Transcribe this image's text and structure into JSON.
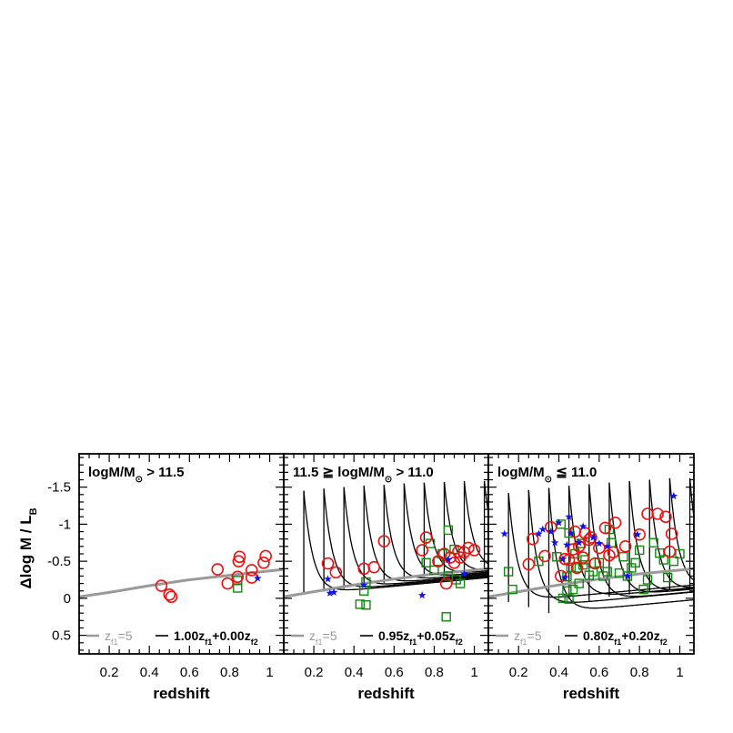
{
  "chart_data": {
    "type": "scatter",
    "shared": {
      "xlabel": "redshift",
      "ylabel": "Δlog M / L",
      "ylabel_subscript": "B",
      "y_axis": "inverted",
      "ylim": [
        0.75,
        -1.95
      ],
      "yticks": [
        0.5,
        0,
        -0.5,
        -1,
        -1.5
      ],
      "ytick_labels": [
        "0.5",
        "0",
        "-0.5",
        "-1",
        "-1.5"
      ],
      "legend_left": {
        "text": "z",
        "sub": "f1",
        "suffix": "=5",
        "color": "#999999"
      },
      "colors": {
        "ssp_line": "#999999",
        "model_line": "#000000",
        "circle": "#ee1111",
        "square": "#118811",
        "star": "#1111ee"
      }
    },
    "panels": [
      {
        "title": "logM/M",
        "title_sub": "⊙",
        "title_rest": " > 11.5",
        "xlim": [
          0.05,
          1.07
        ],
        "xticks": [
          0.2,
          0.4,
          0.6,
          0.8,
          1
        ],
        "xtick_labels": [
          "0.2",
          "0.4",
          "0.6",
          "0.8",
          "1"
        ],
        "legend_right": {
          "p1": "1.00z",
          "s1": "f1",
          "p2": "+0.00z",
          "s2": "f2"
        },
        "ssp_curve": {
          "x": [
            0.05,
            0.2,
            0.4,
            0.6,
            0.8,
            1.0,
            1.07
          ],
          "y": [
            -0.02,
            -0.08,
            -0.17,
            -0.25,
            -0.31,
            -0.37,
            -0.39
          ]
        },
        "model_curves": [],
        "circles": [
          [
            0.46,
            -0.17
          ],
          [
            0.5,
            -0.05
          ],
          [
            0.51,
            -0.02
          ],
          [
            0.74,
            -0.39
          ],
          [
            0.79,
            -0.2
          ],
          [
            0.84,
            -0.29
          ],
          [
            0.845,
            -0.5
          ],
          [
            0.85,
            -0.56
          ],
          [
            0.91,
            -0.28
          ],
          [
            0.91,
            -0.38
          ],
          [
            0.97,
            -0.48
          ],
          [
            0.98,
            -0.57
          ]
        ],
        "squares": [
          [
            0.84,
            -0.14
          ],
          [
            0.84,
            -0.24
          ]
        ],
        "stars": [
          [
            0.94,
            -0.27
          ]
        ]
      },
      {
        "title": "11.5 ≧ logM/M",
        "title_sub": "⊙",
        "title_rest": " > 11.0",
        "xlim": [
          0.05,
          1.07
        ],
        "xticks": [
          0.2,
          0.4,
          0.6,
          0.8,
          1
        ],
        "xtick_labels": [
          "0.2",
          "0.4",
          "0.6",
          "0.8",
          "1"
        ],
        "legend_right": {
          "p1": "0.95z",
          "s1": "f1",
          "p2": "+0.05z",
          "s2": "f2"
        },
        "ssp_curve": {
          "x": [
            0.05,
            0.2,
            0.4,
            0.6,
            0.8,
            1.0,
            1.07
          ],
          "y": [
            -0.02,
            -0.09,
            -0.18,
            -0.26,
            -0.33,
            -0.38,
            -0.4
          ]
        },
        "model_curves": [
          {
            "z0": 0.15,
            "ytop": -1.45,
            "ybase": -0.05
          },
          {
            "z0": 0.25,
            "ytop": -1.48,
            "ybase": -0.09
          },
          {
            "z0": 0.35,
            "ytop": -1.5,
            "ybase": -0.13
          },
          {
            "z0": 0.45,
            "ytop": -1.52,
            "ybase": -0.17
          },
          {
            "z0": 0.55,
            "ytop": -1.53,
            "ybase": -0.21
          },
          {
            "z0": 0.65,
            "ytop": -1.55,
            "ybase": -0.25
          },
          {
            "z0": 0.75,
            "ytop": -1.56,
            "ybase": -0.29
          },
          {
            "z0": 0.85,
            "ytop": -1.57,
            "ybase": -0.32
          },
          {
            "z0": 0.95,
            "ytop": -1.58,
            "ybase": -0.35
          },
          {
            "z0": 1.05,
            "ytop": -1.58,
            "ybase": -0.38
          }
        ],
        "circles": [
          [
            0.27,
            -0.47
          ],
          [
            0.31,
            -0.35
          ],
          [
            0.45,
            -0.4
          ],
          [
            0.5,
            -0.42
          ],
          [
            0.55,
            -0.77
          ],
          [
            0.74,
            -0.65
          ],
          [
            0.76,
            -0.82
          ],
          [
            0.82,
            -0.5
          ],
          [
            0.85,
            -0.6
          ],
          [
            0.86,
            -0.2
          ],
          [
            0.88,
            -0.55
          ],
          [
            0.9,
            -0.48
          ],
          [
            0.92,
            -0.63
          ],
          [
            0.93,
            -0.55
          ],
          [
            0.95,
            -0.62
          ],
          [
            0.97,
            -0.68
          ],
          [
            1.0,
            -0.65
          ]
        ],
        "squares": [
          [
            0.43,
            0.08
          ],
          [
            0.45,
            -0.1
          ],
          [
            0.46,
            -0.22
          ],
          [
            0.46,
            0.09
          ],
          [
            0.76,
            -0.48
          ],
          [
            0.78,
            -0.74
          ],
          [
            0.8,
            -0.38
          ],
          [
            0.82,
            -0.5
          ],
          [
            0.84,
            -0.6
          ],
          [
            0.86,
            0.25
          ],
          [
            0.87,
            -0.92
          ],
          [
            0.87,
            -0.3
          ],
          [
            0.9,
            -0.66
          ],
          [
            0.91,
            -0.25
          ],
          [
            0.93,
            -0.2
          ]
        ],
        "stars": [
          [
            0.27,
            -0.26
          ],
          [
            0.28,
            -0.07
          ],
          [
            0.3,
            -0.08
          ],
          [
            0.45,
            -0.18
          ],
          [
            0.74,
            -0.04
          ],
          [
            0.87,
            -0.52
          ],
          [
            0.95,
            -0.33
          ]
        ]
      },
      {
        "title": "logM/M",
        "title_sub": "⊙",
        "title_rest": " ≦ 11.0",
        "xlim": [
          0.05,
          1.07
        ],
        "xticks": [
          0.2,
          0.4,
          0.6,
          0.8,
          1
        ],
        "xtick_labels": [
          "0.2",
          "0.4",
          "0.6",
          "0.8",
          "1"
        ],
        "legend_right": {
          "p1": "0.80z",
          "s1": "f1",
          "p2": "+0.20z",
          "s2": "f2"
        },
        "ssp_curve": {
          "x": [
            0.05,
            0.2,
            0.4,
            0.6,
            0.8,
            1.0,
            1.07
          ],
          "y": [
            -0.02,
            -0.09,
            -0.18,
            -0.26,
            -0.33,
            -0.38,
            -0.4
          ]
        },
        "model_curves": [
          {
            "z0": 0.15,
            "ytop": -1.42,
            "ybase": 0.05
          },
          {
            "z0": 0.25,
            "ytop": -1.46,
            "ybase": 0.12
          },
          {
            "z0": 0.35,
            "ytop": -1.49,
            "ybase": 0.2
          },
          {
            "z0": 0.45,
            "ytop": -1.52,
            "ybase": 0.01
          },
          {
            "z0": 0.55,
            "ytop": -1.54,
            "ybase": 0.04
          },
          {
            "z0": 0.65,
            "ytop": -1.56,
            "ybase": -0.02
          },
          {
            "z0": 0.75,
            "ytop": -1.58,
            "ybase": -0.05
          },
          {
            "z0": 0.85,
            "ytop": -1.6,
            "ybase": -0.08
          },
          {
            "z0": 0.95,
            "ytop": -1.62,
            "ybase": -0.11
          },
          {
            "z0": 1.05,
            "ytop": -1.62,
            "ybase": -0.14
          }
        ],
        "circles": [
          [
            0.25,
            -0.46
          ],
          [
            0.27,
            -0.8
          ],
          [
            0.33,
            -0.57
          ],
          [
            0.36,
            -0.96
          ],
          [
            0.41,
            -0.3
          ],
          [
            0.43,
            -0.53
          ],
          [
            0.45,
            -0.52
          ],
          [
            0.47,
            -0.66
          ],
          [
            0.48,
            -0.9
          ],
          [
            0.49,
            -0.41
          ],
          [
            0.5,
            -0.7
          ],
          [
            0.52,
            -0.55
          ],
          [
            0.53,
            -0.88
          ],
          [
            0.55,
            -0.79
          ],
          [
            0.56,
            -0.82
          ],
          [
            0.58,
            -0.47
          ],
          [
            0.6,
            -0.68
          ],
          [
            0.63,
            -0.95
          ],
          [
            0.65,
            -0.58
          ],
          [
            0.67,
            -0.62
          ],
          [
            0.68,
            -1.02
          ],
          [
            0.73,
            -0.7
          ],
          [
            0.8,
            -0.86
          ],
          [
            0.84,
            -1.14
          ],
          [
            0.89,
            -1.14
          ],
          [
            0.93,
            -1.1
          ],
          [
            0.95,
            -0.63
          ],
          [
            0.96,
            -0.87
          ]
        ],
        "squares": [
          [
            0.15,
            -0.36
          ],
          [
            0.17,
            -0.12
          ],
          [
            0.3,
            -0.5
          ],
          [
            0.39,
            -0.56
          ],
          [
            0.41,
            -1.0
          ],
          [
            0.42,
            0.0
          ],
          [
            0.44,
            -0.1
          ],
          [
            0.44,
            -0.29
          ],
          [
            0.45,
            -0.88
          ],
          [
            0.45,
            0.01
          ],
          [
            0.46,
            -0.42
          ],
          [
            0.47,
            -0.12
          ],
          [
            0.48,
            -0.6
          ],
          [
            0.49,
            -0.41
          ],
          [
            0.5,
            -0.2
          ],
          [
            0.51,
            -0.74
          ],
          [
            0.52,
            -0.45
          ],
          [
            0.53,
            -0.52
          ],
          [
            0.55,
            -0.31
          ],
          [
            0.57,
            -0.36
          ],
          [
            0.6,
            -0.48
          ],
          [
            0.62,
            -0.3
          ],
          [
            0.64,
            -0.36
          ],
          [
            0.65,
            -0.93
          ],
          [
            0.66,
            -0.75
          ],
          [
            0.7,
            -0.34
          ],
          [
            0.72,
            -0.56
          ],
          [
            0.74,
            -0.3
          ],
          [
            0.76,
            -0.41
          ],
          [
            0.78,
            -0.48
          ],
          [
            0.8,
            -0.65
          ],
          [
            0.82,
            -0.12
          ],
          [
            0.84,
            -0.25
          ],
          [
            0.87,
            -0.75
          ],
          [
            0.9,
            -0.61
          ],
          [
            0.92,
            -0.52
          ],
          [
            0.94,
            -0.28
          ],
          [
            0.97,
            -0.5
          ],
          [
            1.0,
            -0.6
          ]
        ],
        "stars": [
          [
            0.13,
            -0.87
          ],
          [
            0.3,
            -0.87
          ],
          [
            0.32,
            -0.93
          ],
          [
            0.36,
            -0.9
          ],
          [
            0.38,
            -0.75
          ],
          [
            0.4,
            -1.02
          ],
          [
            0.42,
            -0.53
          ],
          [
            0.43,
            -0.28
          ],
          [
            0.44,
            -0.72
          ],
          [
            0.45,
            -1.1
          ],
          [
            0.46,
            -0.88
          ],
          [
            0.5,
            -0.75
          ],
          [
            0.52,
            -0.97
          ],
          [
            0.57,
            -0.82
          ],
          [
            0.6,
            -0.74
          ],
          [
            0.64,
            -0.7
          ],
          [
            0.74,
            -0.3
          ],
          [
            0.79,
            -0.86
          ],
          [
            0.97,
            -1.38
          ]
        ]
      }
    ]
  }
}
